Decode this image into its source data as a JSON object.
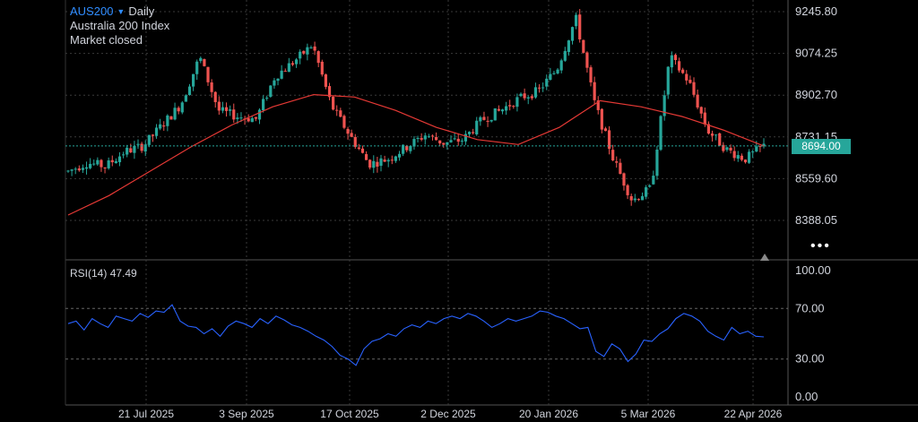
{
  "header": {
    "symbol": "AUS200",
    "timeframe": "Daily",
    "instrument_name": "Australia 200 Index",
    "status": "Market closed",
    "dropdown_icon": "caret-down-icon"
  },
  "last_price_label": "8694.00",
  "more_icon": "more-dots-icon",
  "rsi": {
    "label": "RSI(14)",
    "value": "47.49"
  },
  "colors": {
    "background": "#000000",
    "grid": "#3a3a3a",
    "up_candle": "#26a69a",
    "down_candle": "#ef5350",
    "moving_average": "#e53935",
    "rsi_line": "#2962ff",
    "price_line": "#26a69a",
    "symbol": "#2f8cff"
  },
  "chart_data": [
    {
      "type": "candlestick",
      "title": "AUS200 Daily",
      "y_tick_labels": [
        "9245.80",
        "9074.25",
        "8902.70",
        "8731.15",
        "8559.60",
        "8388.05"
      ],
      "ylim": [
        8290,
        9290
      ],
      "x_tick_labels": [
        "21 Jul 2025",
        "3 Sep 2025",
        "17 Oct 2025",
        "2 Dec 2025",
        "20 Jan 2026",
        "5 Mar 2026",
        "22 Apr 2026"
      ],
      "last_close": 8694.0,
      "ma_values": [
        8410,
        8490,
        8590,
        8690,
        8780,
        8855,
        8905,
        8895,
        8840,
        8770,
        8720,
        8700,
        8770,
        8880,
        8855,
        8815,
        8760,
        8694
      ],
      "close_values": [
        8590,
        8625,
        8610,
        8670,
        8695,
        8780,
        8865,
        9060,
        8840,
        8815,
        8805,
        8980,
        9040,
        9110,
        8860,
        8735,
        8620,
        8640,
        8690,
        8740,
        8705,
        8720,
        8800,
        8840,
        8890,
        8920,
        9010,
        9220,
        8870,
        8640,
        8470,
        8520,
        9060,
        8960,
        8760,
        8680,
        8640,
        8694
      ]
    },
    {
      "type": "line",
      "title": "RSI(14)",
      "y_tick_labels": [
        "100.00",
        "70.00",
        "30.00",
        "0.00"
      ],
      "ylim": [
        0,
        100
      ],
      "reference_levels": [
        30,
        70
      ],
      "x_tick_labels": [
        "21 Jul 2025",
        "3 Sep 2025",
        "17 Oct 2025",
        "2 Dec 2025",
        "20 Jan 2026",
        "5 Mar 2026",
        "22 Apr 2026"
      ],
      "values": [
        58,
        60,
        53,
        62,
        58,
        55,
        64,
        62,
        60,
        66,
        63,
        68,
        67,
        73,
        60,
        56,
        55,
        50,
        54,
        48,
        56,
        60,
        58,
        55,
        62,
        58,
        64,
        61,
        57,
        55,
        52,
        48,
        45,
        40,
        33,
        30,
        25,
        38,
        44,
        46,
        50,
        48,
        54,
        57,
        55,
        60,
        58,
        62,
        64,
        62,
        66,
        64,
        60,
        55,
        58,
        62,
        60,
        62,
        64,
        68,
        67,
        64,
        62,
        58,
        54,
        55,
        36,
        32,
        42,
        38,
        28,
        34,
        45,
        44,
        50,
        54,
        62,
        66,
        64,
        60,
        52,
        48,
        45,
        55,
        50,
        52,
        48,
        47.49
      ]
    }
  ]
}
